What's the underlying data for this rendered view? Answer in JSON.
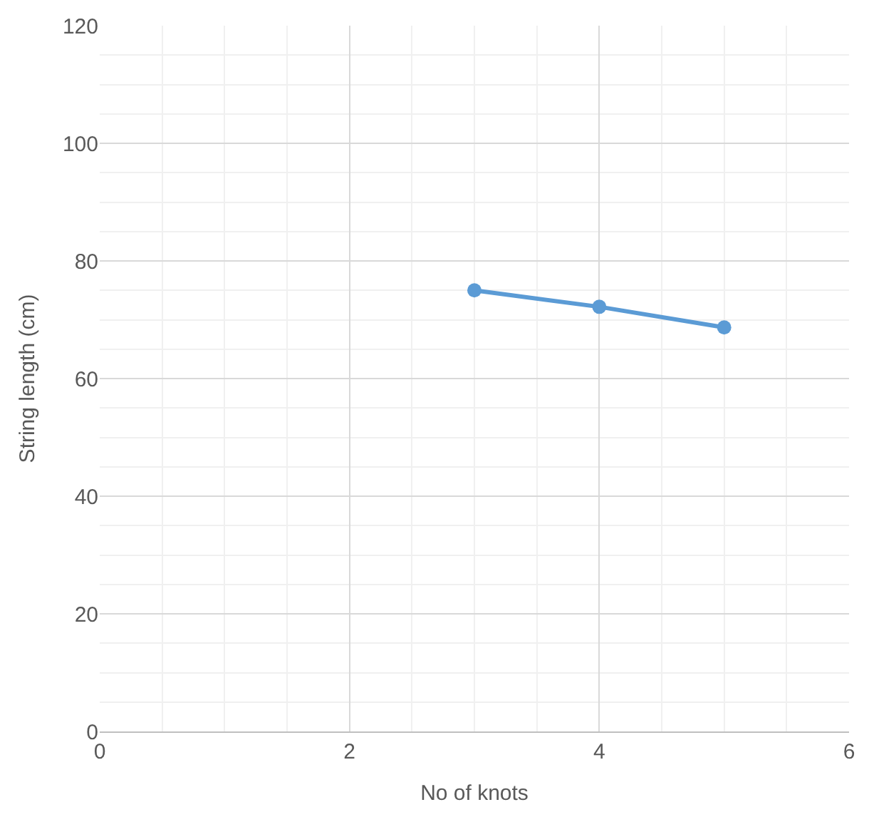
{
  "chart_data": {
    "type": "line",
    "xlabel": "No of knots",
    "ylabel": "String length (cm)",
    "x": [
      3,
      4,
      5
    ],
    "series": [
      {
        "color": "#5b9bd5",
        "values": [
          75.0,
          72.2,
          68.7
        ]
      }
    ],
    "xlim": [
      0,
      6
    ],
    "xticks": [
      0,
      2,
      4,
      6
    ],
    "ylim": [
      0,
      120
    ],
    "yticks": [
      0,
      20,
      40,
      60,
      80,
      100,
      120
    ],
    "grid": true,
    "marker": "circle",
    "line_style": "solid",
    "legend": false
  }
}
